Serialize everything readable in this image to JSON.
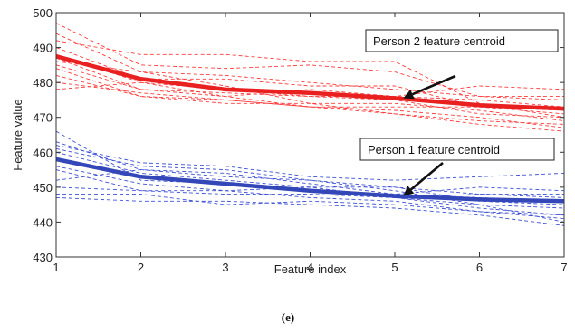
{
  "chart_data": {
    "type": "line",
    "title": "",
    "xlabel": "Feature index",
    "ylabel": "Feature value",
    "xlim": [
      1,
      7
    ],
    "ylim": [
      430,
      500
    ],
    "x": [
      1,
      2,
      3,
      4,
      5,
      6,
      7
    ],
    "xticks": [
      "1",
      "2",
      "3",
      "4",
      "5",
      "6",
      "7"
    ],
    "yticks": [
      "430",
      "440",
      "450",
      "460",
      "470",
      "480",
      "490",
      "500"
    ],
    "grid": false,
    "series": [
      {
        "group": "person2-sample",
        "color": "#ff3b3b",
        "style": "dashed",
        "values": [
          497,
          485,
          484,
          485,
          483,
          476,
          476
        ]
      },
      {
        "group": "person2-sample",
        "color": "#ff3b3b",
        "style": "dashed",
        "values": [
          494,
          483,
          482,
          480,
          478,
          476,
          475
        ]
      },
      {
        "group": "person2-sample",
        "color": "#ff3b3b",
        "style": "dashed",
        "values": [
          492,
          488,
          488,
          486,
          486,
          474,
          470
        ]
      },
      {
        "group": "person2-sample",
        "color": "#ff3b3b",
        "style": "dashed",
        "values": [
          490,
          481,
          481,
          479,
          479,
          473,
          472
        ]
      },
      {
        "group": "person2-sample",
        "color": "#ff3b3b",
        "style": "dashed",
        "values": [
          488,
          480,
          476,
          478,
          476,
          475,
          473
        ]
      },
      {
        "group": "person2-sample",
        "color": "#ff3b3b",
        "style": "dashed",
        "values": [
          487,
          478,
          477,
          476,
          475,
          471,
          470
        ]
      },
      {
        "group": "person2-sample",
        "color": "#ff3b3b",
        "style": "dashed",
        "values": [
          486,
          483,
          479,
          474,
          474,
          472,
          469
        ]
      },
      {
        "group": "person2-sample",
        "color": "#ff3b3b",
        "style": "dashed",
        "values": [
          485,
          478,
          476,
          473,
          472,
          470,
          467
        ]
      },
      {
        "group": "person2-sample",
        "color": "#ff3b3b",
        "style": "dashed",
        "values": [
          484,
          476,
          475,
          473,
          471,
          468,
          466
        ]
      },
      {
        "group": "person2-sample",
        "color": "#ff3b3b",
        "style": "dashed",
        "values": [
          482,
          476,
          474,
          474,
          471,
          469,
          468
        ]
      },
      {
        "group": "person2-sample",
        "color": "#ff3b3b",
        "style": "dashed",
        "values": [
          480,
          477,
          475,
          473,
          473,
          473,
          471
        ]
      },
      {
        "group": "person2-sample",
        "color": "#ff3b3b",
        "style": "dashed",
        "values": [
          478,
          480,
          478,
          476,
          476,
          479,
          478
        ]
      },
      {
        "group": "person1-sample",
        "color": "#3d4fd6",
        "style": "dashed",
        "values": [
          466,
          452,
          451,
          449,
          447,
          448,
          448
        ]
      },
      {
        "group": "person1-sample",
        "color": "#3d4fd6",
        "style": "dashed",
        "values": [
          463,
          455,
          453,
          452,
          450,
          448,
          447
        ]
      },
      {
        "group": "person1-sample",
        "color": "#3d4fd6",
        "style": "dashed",
        "values": [
          461,
          456,
          455,
          452,
          449,
          445,
          444
        ]
      },
      {
        "group": "person1-sample",
        "color": "#3d4fd6",
        "style": "dashed",
        "values": [
          460,
          454,
          452,
          450,
          450,
          446,
          445
        ]
      },
      {
        "group": "person1-sample",
        "color": "#3d4fd6",
        "style": "dashed",
        "values": [
          458,
          453,
          451,
          449,
          448,
          447,
          446
        ]
      },
      {
        "group": "person1-sample",
        "color": "#3d4fd6",
        "style": "dashed",
        "values": [
          456,
          451,
          449,
          447,
          446,
          443,
          441
        ]
      },
      {
        "group": "person1-sample",
        "color": "#3d4fd6",
        "style": "dashed",
        "values": [
          455,
          449,
          449,
          450,
          447,
          444,
          442
        ]
      },
      {
        "group": "person1-sample",
        "color": "#3d4fd6",
        "style": "dashed",
        "values": [
          452,
          455,
          454,
          451,
          448,
          450,
          449
        ]
      },
      {
        "group": "person1-sample",
        "color": "#3d4fd6",
        "style": "dashed",
        "values": [
          450,
          449,
          448,
          448,
          447,
          445,
          440
        ]
      },
      {
        "group": "person1-sample",
        "color": "#3d4fd6",
        "style": "dashed",
        "values": [
          448,
          448,
          445,
          446,
          445,
          443,
          442
        ]
      },
      {
        "group": "person1-sample",
        "color": "#3d4fd6",
        "style": "dashed",
        "values": [
          447,
          446,
          446,
          445,
          444,
          442,
          439
        ]
      },
      {
        "group": "person1-sample",
        "color": "#3d4fd6",
        "style": "dashed",
        "values": [
          462,
          457,
          456,
          453,
          452,
          453,
          454
        ]
      },
      {
        "group": "person2-centroid",
        "color": "#e8201f",
        "style": "solid",
        "values": [
          487.5,
          481,
          478,
          477,
          475.5,
          473.5,
          472.5
        ]
      },
      {
        "group": "person1-centroid",
        "color": "#3347b8",
        "style": "solid",
        "values": [
          458,
          453,
          451,
          449,
          447.5,
          446.5,
          446
        ]
      }
    ],
    "annotations": [
      {
        "text": "Person 2 feature centroid",
        "target": [
          5.1,
          475.5
        ]
      },
      {
        "text": "Person 1 feature centroid",
        "target": [
          5.1,
          447.5
        ]
      }
    ]
  },
  "caption": "(e)"
}
